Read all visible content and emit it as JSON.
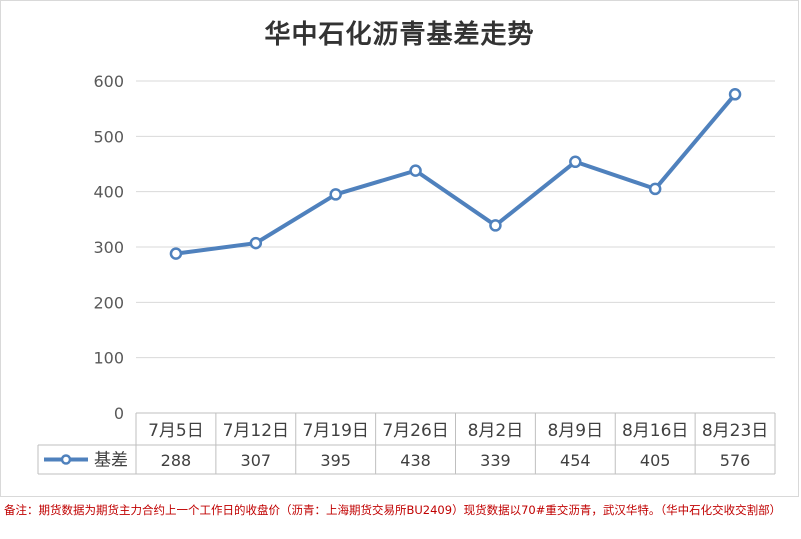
{
  "chart_data": {
    "type": "line",
    "title": "华中石化沥青基差走势",
    "categories": [
      "7月5日",
      "7月12日",
      "7月19日",
      "7月26日",
      "8月2日",
      "8月9日",
      "8月16日",
      "8月23日"
    ],
    "series": [
      {
        "name": "基差",
        "values": [
          288,
          307,
          395,
          438,
          339,
          454,
          405,
          576
        ]
      }
    ],
    "ylim": [
      0,
      600
    ],
    "yticks": [
      0,
      100,
      200,
      300,
      400,
      500,
      600
    ],
    "grid": true,
    "legend": "data-table",
    "line_color": "#4f81bd"
  },
  "note": "备注：期货数据为期货主力合约上一个工作日的收盘价（沥青：上海期货交易所BU2409）现货数据以70#重交沥青，武汉华特。（华中石化交收交割部）"
}
